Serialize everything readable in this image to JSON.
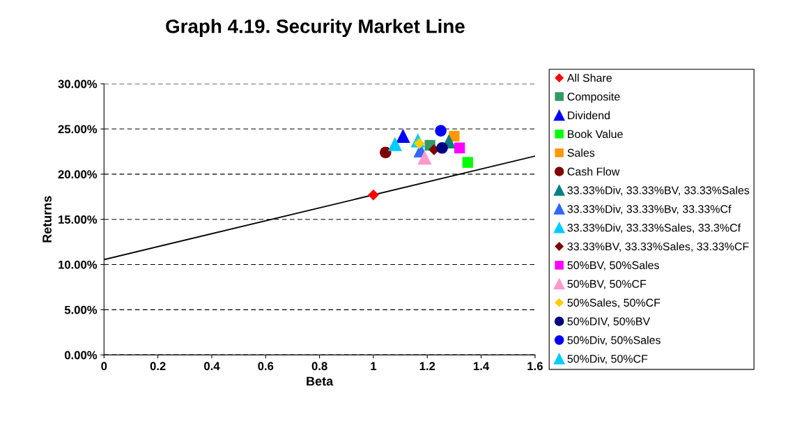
{
  "chart_data": {
    "type": "scatter",
    "title": "Graph 4.19. Security Market Line",
    "xlabel": "Beta",
    "ylabel": "Returns",
    "xlim": [
      0,
      1.6
    ],
    "xticks": [
      0,
      0.2,
      0.4,
      0.6,
      0.8,
      1,
      1.2,
      1.4,
      1.6
    ],
    "ylim": [
      0,
      30
    ],
    "yticks": [
      {
        "value": 0,
        "label": "0.00%"
      },
      {
        "value": 5,
        "label": "5.00%"
      },
      {
        "value": 10,
        "label": "10.00%"
      },
      {
        "value": 15,
        "label": "15.00%"
      },
      {
        "value": 20,
        "label": "20.00%"
      },
      {
        "value": 25,
        "label": "25.00%"
      },
      {
        "value": 30,
        "label": "30.00%"
      }
    ],
    "grid": "y",
    "legend": "right",
    "series": [
      {
        "type": "line",
        "color": "#000000",
        "x": [
          0,
          1.6
        ],
        "values": [
          10.55,
          22.0
        ],
        "marker": "none"
      },
      {
        "name": "All Share",
        "color": "#ff0000",
        "x": [
          1.0
        ],
        "values": [
          17.7
        ],
        "marker": "diamond"
      },
      {
        "name": "Composite",
        "color": "#339966",
        "x": [
          1.21
        ],
        "values": [
          23.2
        ],
        "marker": "square"
      },
      {
        "name": "Dividend",
        "color": "#0000ff",
        "x": [
          1.11
        ],
        "values": [
          24.2
        ],
        "marker": "triangle"
      },
      {
        "name": "Book Value",
        "color": "#00ff00",
        "x": [
          1.35
        ],
        "values": [
          21.3
        ],
        "marker": "square"
      },
      {
        "name": "Sales",
        "color": "#ff9900",
        "x": [
          1.3
        ],
        "values": [
          24.2
        ],
        "marker": "square"
      },
      {
        "name": "Cash Flow",
        "color": "#800000",
        "x": [
          1.045
        ],
        "values": [
          22.4
        ],
        "marker": "circle"
      },
      {
        "name": "33.33%Div, 33.33%BV, 33.33%Sales",
        "color": "#008080",
        "x": [
          1.28
        ],
        "values": [
          23.6
        ],
        "marker": "triangle"
      },
      {
        "name": "33.33%Div, 33.33%Bv, 33.33%Cf",
        "color": "#3366ff",
        "x": [
          1.175
        ],
        "values": [
          22.6
        ],
        "marker": "triangle"
      },
      {
        "name": "33.33%Div, 33.33%Sales, 33.3%Cf",
        "color": "#00ccff",
        "x": [
          1.165
        ],
        "values": [
          23.7
        ],
        "marker": "triangle"
      },
      {
        "name": "33.33%BV, 33.33%Sales, 33.33%CF",
        "color": "#800000",
        "x": [
          1.225
        ],
        "values": [
          22.7
        ],
        "marker": "diamond"
      },
      {
        "name": "50%BV, 50%Sales",
        "color": "#ff00ff",
        "x": [
          1.32
        ],
        "values": [
          22.9
        ],
        "marker": "square"
      },
      {
        "name": "50%BV, 50%CF",
        "color": "#ff99cc",
        "x": [
          1.19
        ],
        "values": [
          21.8
        ],
        "marker": "triangle"
      },
      {
        "name": "50%Sales, 50%CF",
        "color": "#ffcc00",
        "x": [
          1.17
        ],
        "values": [
          23.4
        ],
        "marker": "diamond"
      },
      {
        "name": "50%DIV, 50%BV",
        "color": "#000080",
        "x": [
          1.255
        ],
        "values": [
          22.9
        ],
        "marker": "circle"
      },
      {
        "name": "50%Div, 50%Sales",
        "color": "#0000ff",
        "x": [
          1.25
        ],
        "values": [
          24.8
        ],
        "marker": "circle"
      },
      {
        "name": "50%Div, 50%CF",
        "color": "#00ccff",
        "x": [
          1.08
        ],
        "values": [
          23.3
        ],
        "marker": "triangle"
      }
    ]
  }
}
